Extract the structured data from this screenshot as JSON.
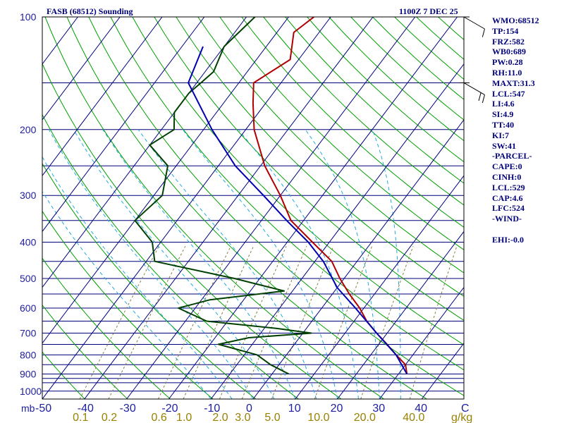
{
  "header": {
    "station": "FASB (68512) Sounding",
    "time": "1100Z  7 DEC 25"
  },
  "indices": [
    "WMO:68512",
    "TP:154",
    "FRZ:582",
    "WB0:689",
    "PW:0.28",
    "RH:11.0",
    "MAXT:31.3",
    "LCL:547",
    "LI:4.6",
    "SI:4.9",
    "TT:40",
    "KI:7",
    "SW:41",
    "-PARCEL-",
    "CAPE:0",
    "CINH:0",
    "LCL:529",
    "CAP:4.6",
    "LFC:524",
    "-WIND-",
    "",
    "EHI:-0.0"
  ],
  "colors": {
    "border": "#000000",
    "isobar": "#00007a",
    "isotherm": "#000080",
    "dry_adiabat": "#00a000",
    "moist_adiabat": "#22aadd",
    "mixing_ratio": "#808040",
    "temperature": "#b00000",
    "dewpoint": "#004000",
    "parcel": "#0000b0",
    "wind": "#000000"
  },
  "chart_data": {
    "type": "line",
    "title": "FASB (68512) Sounding",
    "subtitle": "1100Z  7 DEC 25",
    "pressure_axis_unit": "mb",
    "pressure_ticks": [
      "100",
      "200",
      "300",
      "400",
      "500",
      "600",
      "700",
      "800",
      "900",
      "1000"
    ],
    "pressure_lines": [
      100,
      150,
      200,
      250,
      300,
      350,
      400,
      450,
      500,
      550,
      600,
      650,
      700,
      750,
      800,
      850,
      900,
      925,
      950,
      1000,
      1050
    ],
    "temperature_ticks": [
      "-50",
      "-40",
      "-30",
      "-20",
      "-10",
      "0",
      "10",
      "20",
      "30",
      "40",
      "C"
    ],
    "temperature_tick_values": [
      -50,
      -40,
      -30,
      -20,
      -10,
      0,
      10,
      20,
      30,
      40
    ],
    "mixing_ratio_ticks": [
      "0.1",
      "0.2",
      "0.6",
      "1.0",
      "2.0",
      "3.0",
      "5.0",
      "10.0",
      "20.0",
      "40.0",
      "g/kg"
    ],
    "mixing_ratio_values": [
      0.1,
      0.2,
      0.6,
      1.0,
      2.0,
      3.0,
      5.0,
      10.0,
      20.0,
      40.0
    ],
    "ylim": [
      1050,
      100
    ],
    "xlim": [
      -50,
      50
    ],
    "log_pressure": true,
    "skew": true,
    "series": [
      {
        "name": "temperature",
        "points": [
          [
            100,
            -54
          ],
          [
            110,
            -56
          ],
          [
            130,
            -52
          ],
          [
            150,
            -56.5
          ],
          [
            170,
            -53
          ],
          [
            200,
            -48
          ],
          [
            250,
            -39
          ],
          [
            300,
            -30
          ],
          [
            350,
            -23
          ],
          [
            400,
            -14
          ],
          [
            450,
            -6
          ],
          [
            500,
            -1
          ],
          [
            550,
            4
          ],
          [
            600,
            9
          ],
          [
            650,
            13
          ],
          [
            700,
            17.5
          ],
          [
            750,
            22
          ],
          [
            800,
            26
          ],
          [
            850,
            30
          ],
          [
            900,
            32
          ]
        ]
      },
      {
        "name": "dewpoint",
        "points": [
          [
            100,
            -68
          ],
          [
            120,
            -70
          ],
          [
            140,
            -68
          ],
          [
            150,
            -69
          ],
          [
            160,
            -70
          ],
          [
            180,
            -70
          ],
          [
            200,
            -67
          ],
          [
            220,
            -70
          ],
          [
            250,
            -62
          ],
          [
            300,
            -58
          ],
          [
            350,
            -60
          ],
          [
            400,
            -52
          ],
          [
            450,
            -48
          ],
          [
            500,
            -26
          ],
          [
            540,
            -12
          ],
          [
            570,
            -28
          ],
          [
            600,
            -34
          ],
          [
            650,
            -25
          ],
          [
            680,
            -7
          ],
          [
            700,
            2
          ],
          [
            720,
            -12
          ],
          [
            750,
            -18
          ],
          [
            800,
            -7
          ],
          [
            850,
            -2
          ],
          [
            900,
            4
          ]
        ]
      },
      {
        "name": "parcel",
        "points": [
          [
            120,
            -75
          ],
          [
            150,
            -72
          ],
          [
            200,
            -58
          ],
          [
            250,
            -46
          ],
          [
            300,
            -34
          ],
          [
            350,
            -24
          ],
          [
            400,
            -15
          ],
          [
            450,
            -8
          ],
          [
            529,
            0
          ],
          [
            600,
            8
          ],
          [
            700,
            17.5
          ],
          [
            800,
            26
          ],
          [
            900,
            32
          ]
        ]
      }
    ],
    "dry_adiabat_thetas": [
      230,
      240,
      250,
      260,
      270,
      280,
      290,
      300,
      310,
      320,
      330,
      340,
      350,
      360,
      370,
      380,
      390,
      400,
      410,
      420,
      430,
      440,
      450,
      460,
      470,
      480
    ],
    "moist_adiabat_starts": [
      -10,
      -5,
      0,
      5,
      10,
      15,
      20,
      25,
      30,
      35
    ],
    "isotherm_values": [
      -150,
      -140,
      -130,
      -120,
      -110,
      -100,
      -90,
      -80,
      -70,
      -60,
      -50,
      -40,
      -30,
      -20,
      -10,
      0,
      10,
      20,
      30,
      40,
      50
    ],
    "wind_barbs": [
      {
        "pressure": 100,
        "speed_kt": 10,
        "direction_deg": 300
      },
      {
        "pressure": 150,
        "speed_kt": 20,
        "direction_deg": 300
      }
    ],
    "grid": true
  }
}
